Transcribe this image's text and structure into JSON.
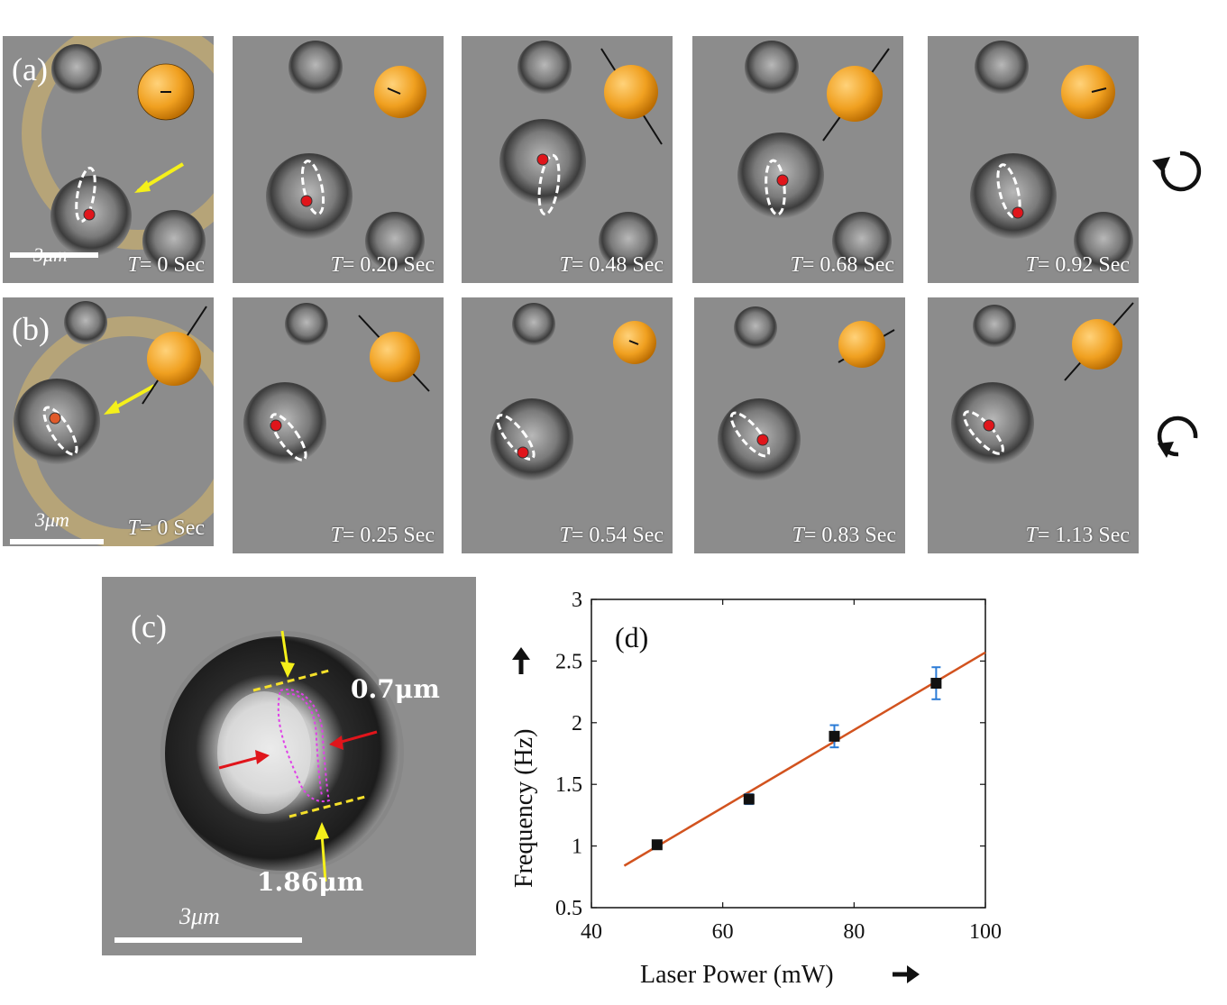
{
  "panel_a": {
    "label": "(a)",
    "scale_label": "3μm",
    "frames": [
      {
        "time_prefix": "T",
        "time_text": "= 0 Sec"
      },
      {
        "time_prefix": "T",
        "time_text": "= 0.20 Sec"
      },
      {
        "time_prefix": "T",
        "time_text": "= 0.48 Sec"
      },
      {
        "time_prefix": "T",
        "time_text": "= 0.68 Sec"
      },
      {
        "time_prefix": "T",
        "time_text": "= 0.92 Sec"
      }
    ],
    "rotation": "clockwise-icon"
  },
  "panel_b": {
    "label": "(b)",
    "scale_label": "3μm",
    "frames": [
      {
        "time_prefix": "T",
        "time_text": "= 0 Sec"
      },
      {
        "time_prefix": "T",
        "time_text": "= 0.25 Sec"
      },
      {
        "time_prefix": "T",
        "time_text": "= 0.54 Sec"
      },
      {
        "time_prefix": "T",
        "time_text": "= 0.83 Sec"
      },
      {
        "time_prefix": "T",
        "time_text": "= 1.13 Sec"
      }
    ],
    "rotation": "counterclockwise-icon"
  },
  "panel_c": {
    "label": "(c)",
    "width_label": "0.7μm",
    "length_label": "1.86μm",
    "scale_label": "3μm",
    "colors": {
      "arrow_yellow": "#f5f01a",
      "arrow_red": "#e0151b",
      "trace": "#e040e8",
      "dash": "#f5e02a"
    }
  },
  "chart_data": {
    "type": "scatter",
    "panel_label": "(d)",
    "xlabel": "Laser Power (mW)",
    "ylabel": "Frequency (Hz)",
    "xlim": [
      40,
      100
    ],
    "ylim": [
      0.5,
      3
    ],
    "xticks": [
      "40",
      "60",
      "80",
      "100"
    ],
    "yticks": [
      "0.5",
      "1",
      "1.5",
      "2",
      "2.5",
      "3"
    ],
    "points": [
      {
        "x": 50,
        "y": 1.01,
        "err": 0.03
      },
      {
        "x": 64,
        "y": 1.38,
        "err": 0.04
      },
      {
        "x": 77,
        "y": 1.89,
        "err": 0.09
      },
      {
        "x": 92.5,
        "y": 2.32,
        "err": 0.13
      }
    ],
    "fit_line": {
      "x": [
        45,
        100
      ],
      "y": [
        0.84,
        2.57
      ]
    },
    "colors": {
      "marker": "#111111",
      "errorbar": "#2b7bd6",
      "fit": "#d2531f"
    },
    "grid": false
  }
}
